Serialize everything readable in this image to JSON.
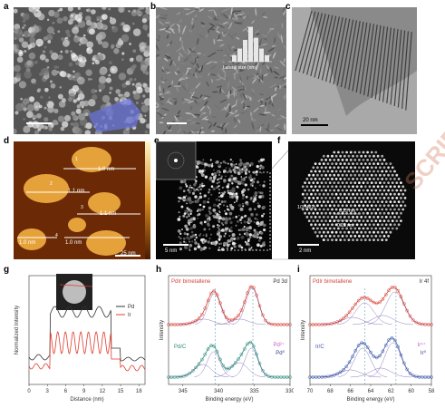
{
  "panels": {
    "a": {
      "label": "a",
      "scalebar": ""
    },
    "b": {
      "label": "b",
      "inset_xlabel": "Lateral size (nm)",
      "scalebar": ""
    },
    "c": {
      "label": "c",
      "scalebar": "20 nm"
    },
    "d": {
      "label": "d",
      "scalebar": "25 nm",
      "profiles": [
        {
          "num": "1",
          "height": "1.0 nm"
        },
        {
          "num": "2",
          "height": "1.1 nm"
        },
        {
          "num": "3",
          "height": "1.1 nm"
        },
        {
          "num": "4",
          "height": "1.0 nm"
        }
      ],
      "extra_height": "1.0 nm"
    },
    "e": {
      "label": "e",
      "scalebar": "5 nm"
    },
    "f": {
      "label": "f",
      "scalebar": "2 nm",
      "annotations": [
        "1/3 (422)",
        "0.23 nm",
        "0.23 nm"
      ]
    },
    "g": {
      "label": "g",
      "xlabel": "Distance (nm)",
      "ylabel": "Normalized Intensity",
      "xticks": [
        "0",
        "3",
        "6",
        "9",
        "12",
        "15",
        "18"
      ],
      "legend": [
        "Pd",
        "Ir"
      ]
    },
    "h": {
      "label": "h",
      "title_left": "PdIr bimetallene",
      "title_right": "Pd 3d",
      "xlabel": "Binding energy (eV)",
      "ylabel": "Intensity",
      "xticks": [
        "345",
        "340",
        "335",
        "330"
      ],
      "lower_label": "Pd/C",
      "state_labels": [
        "Pd²⁺",
        "Pd⁰"
      ]
    },
    "i": {
      "label": "i",
      "title_left": "PdIr bimetallene",
      "title_right": "Ir 4f",
      "xlabel": "Binding energy (eV)",
      "ylabel": "Intensity",
      "xticks": [
        "70",
        "68",
        "66",
        "64",
        "62",
        "60",
        "58"
      ],
      "lower_label": "Ir/C",
      "state_labels": [
        "Ir⁴⁺",
        "Ir⁰"
      ]
    }
  },
  "watermark": "SCRIPT",
  "colors": {
    "pd_line": "#333333",
    "ir_line": "#e03c2c",
    "pdir_points": "#d9463a",
    "pdc_points": "#2f8a7f",
    "irc_points": "#3d5aa8",
    "afm": "#d68a1c"
  }
}
